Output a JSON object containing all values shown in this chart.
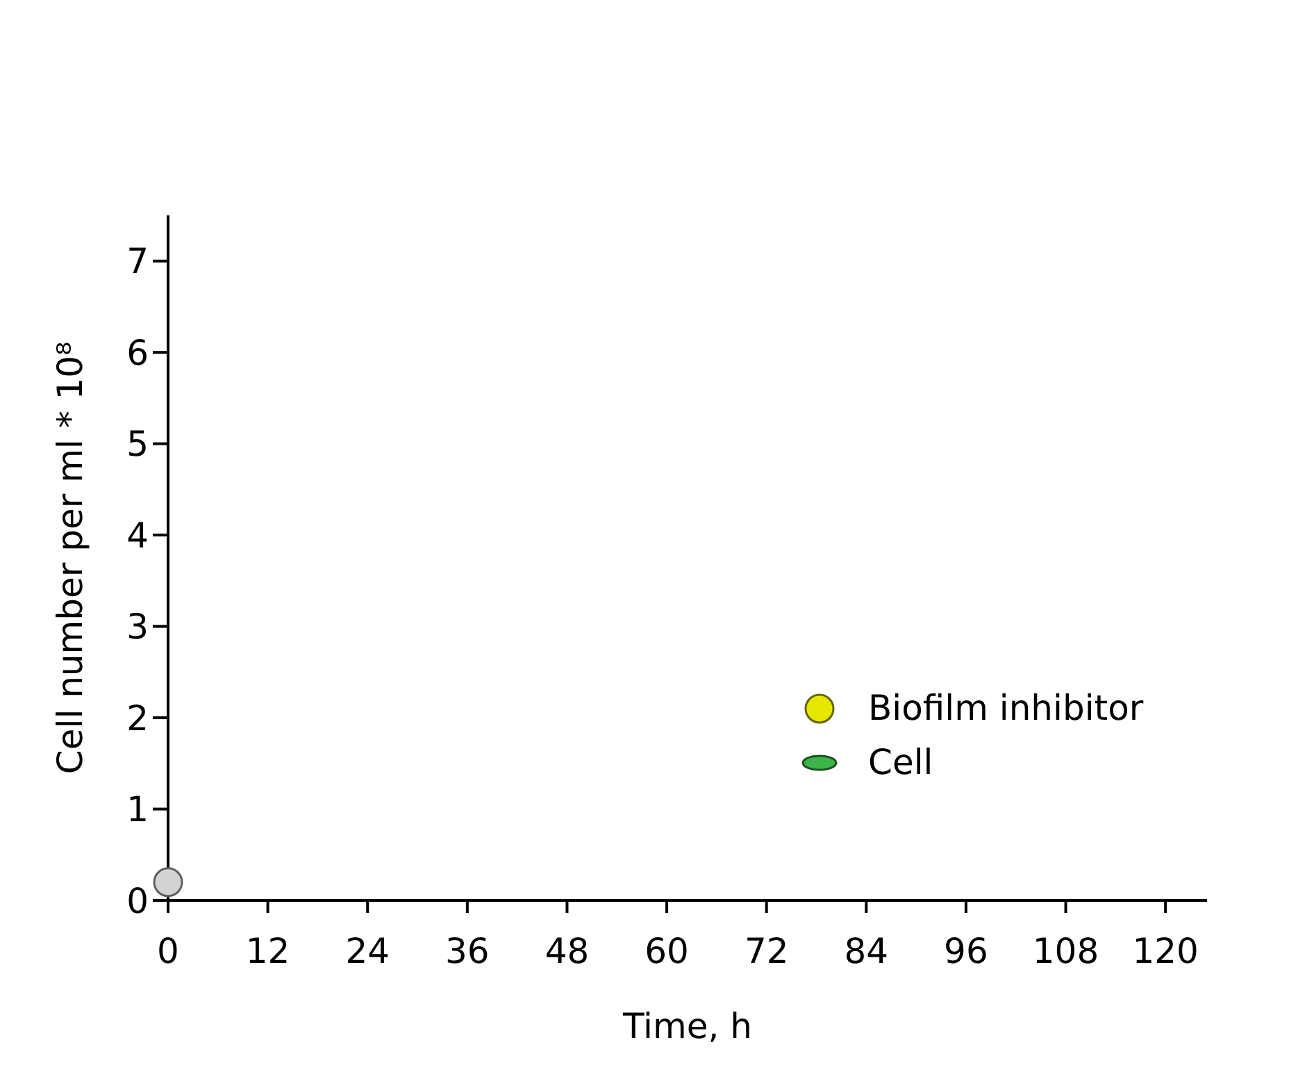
{
  "chart_data": {
    "type": "scatter",
    "xlabel": "Time, h",
    "ylabel": "Cell number per ml * 10⁸",
    "x": [
      0
    ],
    "series": [
      {
        "color": "#d3d3d3",
        "values": [
          0.2
        ],
        "marker": "circle"
      },
      {
        "name": "Biofilm inhibitor",
        "color": "#e6e600",
        "values": [
          null
        ],
        "marker": "circle"
      },
      {
        "name": "Cell",
        "color": "#3cb44a",
        "values": [
          null
        ]
      }
    ],
    "xlim": [
      0,
      125
    ],
    "xticks": [
      0,
      12,
      24,
      36,
      48,
      60,
      72,
      84,
      96,
      108,
      120
    ],
    "ylim": [
      0,
      7.5
    ],
    "yticks": [
      0,
      1,
      2,
      3,
      4,
      5,
      6,
      7
    ],
    "grid": false,
    "legend": "bottom right"
  }
}
